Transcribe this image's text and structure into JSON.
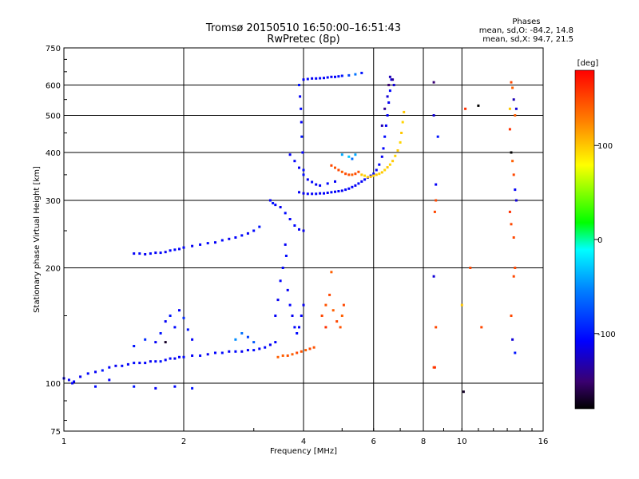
{
  "header": {
    "title": "Tromsø 20150510 16:50:00–16:51:43",
    "subtitle": "RwPretec (8p)"
  },
  "stats": {
    "heading": "Phases",
    "line_o": "mean, sd,O: -84.2, 14.8",
    "line_x": "mean, sd,X: 94.7, 21.5"
  },
  "colorbar": {
    "label": "[deg]",
    "ticks": [
      "100",
      "0",
      "-100"
    ],
    "tick_values": [
      100,
      0,
      -100
    ],
    "range": [
      -180,
      180
    ]
  },
  "chart_data": {
    "type": "scatter",
    "xlabel": "Frequency [MHz]",
    "ylabel": "Stationary phase Virtual Height [km]",
    "xscale": "log",
    "yscale": "log",
    "xlim": [
      1,
      16
    ],
    "ylim": [
      75,
      750
    ],
    "xticks": [
      {
        "value": 1,
        "label": "1"
      },
      {
        "value": 2,
        "label": "2"
      },
      {
        "value": 4,
        "label": "4"
      },
      {
        "value": 6,
        "label": "6"
      },
      {
        "value": 8,
        "label": "8"
      },
      {
        "value": 10,
        "label": "10"
      },
      {
        "value": 16,
        "label": "16"
      }
    ],
    "yticks": [
      {
        "value": 75,
        "label": "75"
      },
      {
        "value": 100,
        "label": "100"
      },
      {
        "value": 200,
        "label": "200"
      },
      {
        "value": 300,
        "label": "300"
      },
      {
        "value": 400,
        "label": "400"
      },
      {
        "value": 500,
        "label": "500"
      },
      {
        "value": 600,
        "label": "600"
      },
      {
        "value": 750,
        "label": "750"
      }
    ],
    "grid": true,
    "color_by": "phase",
    "points": [
      [
        1.0,
        103,
        -110
      ],
      [
        1.03,
        102,
        -110
      ],
      [
        1.06,
        101,
        -108
      ],
      [
        1.1,
        104,
        -112
      ],
      [
        1.15,
        106,
        -105
      ],
      [
        1.2,
        107,
        -110
      ],
      [
        1.25,
        108,
        -100
      ],
      [
        1.3,
        110,
        -108
      ],
      [
        1.35,
        111,
        -112
      ],
      [
        1.4,
        111,
        -106
      ],
      [
        1.45,
        112,
        -110
      ],
      [
        1.5,
        113,
        -104
      ],
      [
        1.55,
        113,
        -110
      ],
      [
        1.6,
        113,
        -108
      ],
      [
        1.65,
        114,
        -112
      ],
      [
        1.7,
        114,
        -106
      ],
      [
        1.75,
        114,
        -100
      ],
      [
        1.8,
        115,
        -110
      ],
      [
        1.85,
        116,
        -105
      ],
      [
        1.9,
        116,
        -112
      ],
      [
        1.95,
        117,
        -108
      ],
      [
        2.0,
        117,
        -104
      ],
      [
        2.1,
        118,
        -110
      ],
      [
        2.2,
        118,
        -106
      ],
      [
        2.3,
        119,
        -112
      ],
      [
        2.4,
        120,
        -108
      ],
      [
        2.5,
        120,
        -104
      ],
      [
        2.6,
        121,
        -110
      ],
      [
        2.7,
        121,
        -106
      ],
      [
        2.8,
        121,
        -112
      ],
      [
        2.9,
        122,
        -108
      ],
      [
        3.0,
        122,
        -104
      ],
      [
        3.1,
        123,
        -110
      ],
      [
        3.2,
        124,
        -106
      ],
      [
        3.3,
        126,
        -112
      ],
      [
        3.4,
        128,
        -108
      ],
      [
        3.45,
        117,
        140
      ],
      [
        3.55,
        118,
        140
      ],
      [
        3.65,
        118,
        145
      ],
      [
        3.75,
        119,
        140
      ],
      [
        3.85,
        120,
        150
      ],
      [
        3.95,
        121,
        145
      ],
      [
        4.05,
        122,
        140
      ],
      [
        4.15,
        123,
        150
      ],
      [
        4.25,
        124,
        145
      ],
      [
        1.5,
        218,
        -110
      ],
      [
        1.55,
        218,
        -106
      ],
      [
        1.6,
        217,
        -112
      ],
      [
        1.65,
        218,
        -104
      ],
      [
        1.7,
        219,
        -110
      ],
      [
        1.75,
        219,
        -106
      ],
      [
        1.8,
        220,
        -112
      ],
      [
        1.85,
        222,
        -108
      ],
      [
        1.9,
        223,
        -104
      ],
      [
        1.95,
        224,
        -110
      ],
      [
        2.0,
        226,
        -106
      ],
      [
        2.1,
        228,
        -112
      ],
      [
        2.2,
        230,
        -108
      ],
      [
        2.3,
        232,
        -104
      ],
      [
        2.4,
        233,
        -110
      ],
      [
        2.5,
        236,
        -106
      ],
      [
        2.6,
        238,
        -112
      ],
      [
        2.7,
        240,
        -108
      ],
      [
        2.8,
        243,
        -104
      ],
      [
        2.9,
        246,
        -110
      ],
      [
        3.0,
        250,
        -106
      ],
      [
        3.1,
        256,
        -100
      ],
      [
        3.3,
        300,
        -110
      ],
      [
        3.35,
        295,
        -100
      ],
      [
        3.4,
        292,
        -108
      ],
      [
        3.5,
        288,
        -112
      ],
      [
        3.6,
        278,
        -104
      ],
      [
        3.7,
        268,
        -110
      ],
      [
        3.8,
        258,
        -106
      ],
      [
        3.9,
        252,
        -110
      ],
      [
        4.0,
        250,
        -112
      ],
      [
        3.9,
        315,
        -110
      ],
      [
        4.0,
        313,
        -112
      ],
      [
        4.1,
        312,
        -108
      ],
      [
        4.2,
        312,
        -110
      ],
      [
        4.3,
        312,
        -106
      ],
      [
        4.4,
        313,
        -112
      ],
      [
        4.5,
        313,
        -108
      ],
      [
        4.6,
        314,
        -110
      ],
      [
        4.7,
        315,
        -104
      ],
      [
        4.8,
        316,
        -110
      ],
      [
        4.9,
        317,
        -108
      ],
      [
        5.0,
        318,
        -112
      ],
      [
        5.1,
        320,
        -106
      ],
      [
        5.2,
        322,
        -110
      ],
      [
        5.3,
        325,
        -108
      ],
      [
        5.4,
        328,
        -112
      ],
      [
        5.5,
        332,
        -104
      ],
      [
        5.6,
        336,
        -110
      ],
      [
        5.7,
        340,
        -106
      ],
      [
        5.8,
        344,
        -112
      ],
      [
        5.9,
        348,
        -108
      ],
      [
        6.0,
        352,
        -104
      ],
      [
        6.1,
        360,
        -110
      ],
      [
        6.2,
        372,
        -106
      ],
      [
        6.3,
        390,
        -112
      ],
      [
        6.35,
        410,
        -108
      ],
      [
        6.4,
        440,
        -104
      ],
      [
        6.45,
        470,
        -110
      ],
      [
        6.5,
        500,
        -108
      ],
      [
        6.55,
        540,
        -112
      ],
      [
        6.6,
        580,
        -106
      ],
      [
        6.65,
        620,
        -110
      ],
      [
        6.3,
        470,
        -130
      ],
      [
        6.4,
        520,
        -140
      ],
      [
        6.5,
        560,
        -120
      ],
      [
        6.55,
        600,
        -150
      ],
      [
        6.6,
        630,
        -130
      ],
      [
        6.7,
        620,
        -140
      ],
      [
        6.75,
        600,
        -120
      ],
      [
        4.7,
        370,
        150
      ],
      [
        4.8,
        365,
        145
      ],
      [
        4.9,
        360,
        150
      ],
      [
        5.0,
        356,
        140
      ],
      [
        5.1,
        352,
        150
      ],
      [
        5.2,
        350,
        145
      ],
      [
        5.3,
        350,
        140
      ],
      [
        5.4,
        352,
        150
      ],
      [
        5.5,
        356,
        145
      ],
      [
        5.6,
        350,
        100
      ],
      [
        5.7,
        348,
        95
      ],
      [
        5.8,
        345,
        100
      ],
      [
        5.9,
        346,
        105
      ],
      [
        6.0,
        348,
        95
      ],
      [
        6.1,
        350,
        100
      ],
      [
        6.2,
        352,
        95
      ],
      [
        6.3,
        355,
        100
      ],
      [
        6.4,
        360,
        95
      ],
      [
        6.5,
        366,
        100
      ],
      [
        6.6,
        372,
        95
      ],
      [
        6.7,
        380,
        100
      ],
      [
        6.8,
        392,
        95
      ],
      [
        6.9,
        405,
        100
      ],
      [
        7.0,
        425,
        95
      ],
      [
        7.05,
        450,
        100
      ],
      [
        7.1,
        480,
        95
      ],
      [
        7.15,
        510,
        100
      ],
      [
        4.0,
        620,
        -110
      ],
      [
        4.1,
        622,
        -106
      ],
      [
        4.2,
        624,
        -112
      ],
      [
        4.3,
        624,
        -108
      ],
      [
        4.4,
        625,
        -104
      ],
      [
        4.5,
        626,
        -110
      ],
      [
        4.6,
        628,
        -106
      ],
      [
        4.7,
        630,
        -112
      ],
      [
        4.8,
        630,
        -108
      ],
      [
        4.9,
        632,
        -104
      ],
      [
        5.0,
        634,
        -100
      ],
      [
        5.2,
        636,
        -80
      ],
      [
        5.4,
        640,
        -60
      ],
      [
        5.6,
        645,
        -100
      ],
      [
        3.9,
        600,
        -100
      ],
      [
        3.92,
        560,
        -110
      ],
      [
        3.94,
        520,
        -105
      ],
      [
        3.95,
        480,
        -110
      ],
      [
        3.96,
        440,
        -100
      ],
      [
        3.98,
        400,
        -108
      ],
      [
        4.0,
        360,
        -104
      ],
      [
        3.4,
        150,
        -110
      ],
      [
        3.45,
        165,
        -112
      ],
      [
        3.5,
        185,
        -108
      ],
      [
        3.55,
        200,
        -106
      ],
      [
        3.6,
        230,
        -110
      ],
      [
        3.62,
        215,
        -104
      ],
      [
        3.65,
        175,
        -110
      ],
      [
        3.7,
        160,
        -108
      ],
      [
        3.75,
        150,
        -112
      ],
      [
        3.8,
        140,
        -106
      ],
      [
        3.85,
        135,
        -104
      ],
      [
        3.9,
        140,
        -110
      ],
      [
        3.95,
        150,
        -108
      ],
      [
        4.0,
        160,
        -112
      ],
      [
        4.45,
        150,
        150
      ],
      [
        4.55,
        160,
        145
      ],
      [
        4.65,
        170,
        150
      ],
      [
        4.75,
        155,
        140
      ],
      [
        4.85,
        145,
        150
      ],
      [
        4.95,
        140,
        145
      ],
      [
        5.0,
        150,
        140
      ],
      [
        5.05,
        160,
        150
      ],
      [
        4.55,
        140,
        160
      ],
      [
        4.7,
        195,
        140
      ],
      [
        1.05,
        100,
        -110
      ],
      [
        1.2,
        98,
        -105
      ],
      [
        1.3,
        102,
        -110
      ],
      [
        1.5,
        98,
        -100
      ],
      [
        1.7,
        97,
        -110
      ],
      [
        1.9,
        98,
        -105
      ],
      [
        2.1,
        97,
        -100
      ],
      [
        1.5,
        125,
        -100
      ],
      [
        1.6,
        130,
        -90
      ],
      [
        1.7,
        128,
        -110
      ],
      [
        1.75,
        135,
        -100
      ],
      [
        1.8,
        145,
        -110
      ],
      [
        1.85,
        150,
        -100
      ],
      [
        1.9,
        140,
        -105
      ],
      [
        1.95,
        155,
        -110
      ],
      [
        2.0,
        148,
        -90
      ],
      [
        2.05,
        138,
        -100
      ],
      [
        2.1,
        130,
        -110
      ],
      [
        1.8,
        128,
        -170
      ],
      [
        2.7,
        130,
        -50
      ],
      [
        2.8,
        135,
        -60
      ],
      [
        2.9,
        132,
        -80
      ],
      [
        3.0,
        128,
        -70
      ],
      [
        3.7,
        395,
        -110
      ],
      [
        3.8,
        380,
        -108
      ],
      [
        3.9,
        365,
        -112
      ],
      [
        4.0,
        350,
        -104
      ],
      [
        4.1,
        340,
        -110
      ],
      [
        4.2,
        335,
        -106
      ],
      [
        4.3,
        330,
        -112
      ],
      [
        4.4,
        328,
        -108
      ],
      [
        4.6,
        332,
        -104
      ],
      [
        4.8,
        336,
        -110
      ],
      [
        5.0,
        395,
        -40
      ],
      [
        5.2,
        390,
        -30
      ],
      [
        5.3,
        385,
        -60
      ],
      [
        5.4,
        395,
        -40
      ],
      [
        8.5,
        610,
        -150
      ],
      [
        8.5,
        500,
        -120
      ],
      [
        8.6,
        330,
        -110
      ],
      [
        8.7,
        440,
        -100
      ],
      [
        8.5,
        110,
        150
      ],
      [
        8.55,
        110,
        160
      ],
      [
        8.6,
        140,
        150
      ],
      [
        8.5,
        190,
        -120
      ],
      [
        8.55,
        280,
        150
      ],
      [
        8.6,
        300,
        150
      ],
      [
        10.0,
        160,
        100
      ],
      [
        10.1,
        95,
        -170
      ],
      [
        10.2,
        520,
        160
      ],
      [
        10.5,
        200,
        150
      ],
      [
        11.0,
        530,
        -180
      ],
      [
        11.2,
        140,
        150
      ],
      [
        13.3,
        610,
        150
      ],
      [
        13.4,
        590,
        140
      ],
      [
        13.5,
        550,
        -130
      ],
      [
        13.6,
        500,
        140
      ],
      [
        13.2,
        460,
        160
      ],
      [
        13.3,
        400,
        -180
      ],
      [
        13.4,
        380,
        140
      ],
      [
        13.5,
        350,
        150
      ],
      [
        13.6,
        320,
        -110
      ],
      [
        13.7,
        300,
        -120
      ],
      [
        13.2,
        280,
        160
      ],
      [
        13.3,
        260,
        150
      ],
      [
        13.5,
        240,
        150
      ],
      [
        13.6,
        200,
        150
      ],
      [
        13.5,
        190,
        150
      ],
      [
        13.3,
        150,
        150
      ],
      [
        13.4,
        130,
        -120
      ],
      [
        13.6,
        120,
        -100
      ],
      [
        13.2,
        520,
        100
      ],
      [
        13.7,
        520,
        -120
      ]
    ]
  }
}
